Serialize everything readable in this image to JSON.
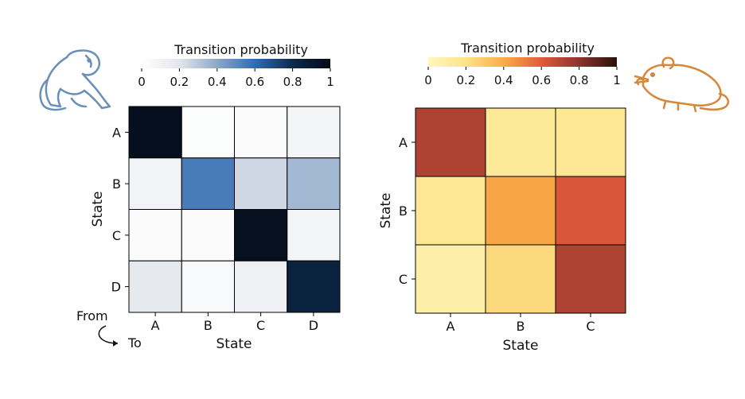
{
  "annotation": {
    "from": "From",
    "to": "To"
  },
  "icons": {
    "left": "monkey-icon",
    "right": "rat-icon"
  },
  "colors": {
    "monkey_icon": "#6a8fb8",
    "rat_icon": "#d4883a",
    "cell_border": "#000000"
  },
  "chart_data": [
    {
      "type": "heatmap",
      "colormap": "Blues-to-black (white → blue → black)",
      "colorbar": {
        "title": "Transition probability",
        "ticks": [
          "0",
          "0.2",
          "0.4",
          "0.6",
          "0.8",
          "1"
        ],
        "range": [
          0,
          1
        ]
      },
      "xlabel": "State",
      "ylabel": "State",
      "x_categories": [
        "A",
        "B",
        "C",
        "D"
      ],
      "y_categories": [
        "A",
        "B",
        "C",
        "D"
      ],
      "values": [
        [
          0.97,
          0.02,
          0.03,
          0.08
        ],
        [
          0.1,
          0.55,
          0.25,
          0.35
        ],
        [
          0.03,
          0.03,
          0.96,
          0.08
        ],
        [
          0.18,
          0.05,
          0.12,
          0.85
        ]
      ]
    },
    {
      "type": "heatmap",
      "colormap": "YlOrBr (pale yellow → orange → red → dark brown)",
      "colorbar": {
        "title": "Transition probability",
        "ticks": [
          "0",
          "0.2",
          "0.4",
          "0.6",
          "0.8",
          "1"
        ],
        "range": [
          0,
          1
        ]
      },
      "xlabel": "State",
      "ylabel": "State",
      "x_categories": [
        "A",
        "B",
        "C"
      ],
      "y_categories": [
        "A",
        "B",
        "C"
      ],
      "values": [
        [
          0.72,
          0.14,
          0.16
        ],
        [
          0.16,
          0.42,
          0.62
        ],
        [
          0.08,
          0.24,
          0.72
        ]
      ]
    }
  ]
}
